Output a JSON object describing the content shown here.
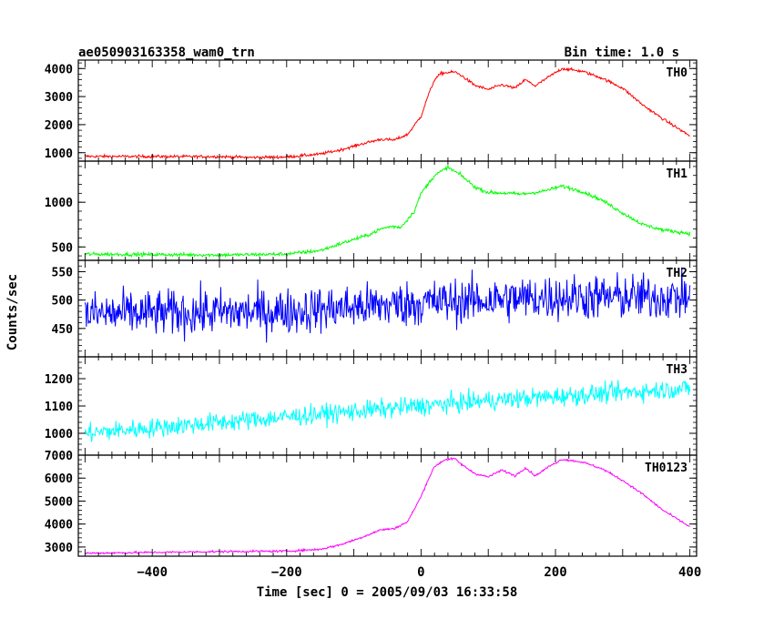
{
  "header": {
    "title": "ae050903163358_wam0_trn",
    "bin_time": "Bin time: 1.0 s"
  },
  "chart_data": {
    "type": "line",
    "xlabel": "Time [sec] 0 = 2005/09/03 16:33:58",
    "ylabel": "Counts/sec",
    "xlim": [
      -510,
      410
    ],
    "xticks": [
      -400,
      -200,
      0,
      200,
      400
    ],
    "grid": false,
    "panels": [
      {
        "name": "TH0",
        "color": "#ff0000",
        "ylim": [
          700,
          4300
        ],
        "yticks": [
          1000,
          2000,
          3000,
          4000
        ],
        "noise": 50,
        "points": [
          [
            -500,
            870
          ],
          [
            -300,
            860
          ],
          [
            -250,
            830
          ],
          [
            -200,
            850
          ],
          [
            -150,
            950
          ],
          [
            -120,
            1100
          ],
          [
            -90,
            1300
          ],
          [
            -60,
            1480
          ],
          [
            -40,
            1450
          ],
          [
            -20,
            1650
          ],
          [
            0,
            2300
          ],
          [
            10,
            3000
          ],
          [
            20,
            3600
          ],
          [
            30,
            3830
          ],
          [
            50,
            3880
          ],
          [
            60,
            3750
          ],
          [
            80,
            3400
          ],
          [
            100,
            3250
          ],
          [
            120,
            3420
          ],
          [
            140,
            3300
          ],
          [
            155,
            3600
          ],
          [
            170,
            3380
          ],
          [
            190,
            3700
          ],
          [
            210,
            4000
          ],
          [
            240,
            3900
          ],
          [
            270,
            3650
          ],
          [
            300,
            3300
          ],
          [
            330,
            2700
          ],
          [
            360,
            2200
          ],
          [
            400,
            1600
          ]
        ]
      },
      {
        "name": "TH1",
        "color": "#00ff00",
        "ylim": [
          350,
          1460
        ],
        "yticks": [
          500,
          1000
        ],
        "noise": 20,
        "points": [
          [
            -500,
            420
          ],
          [
            -300,
            410
          ],
          [
            -200,
            420
          ],
          [
            -150,
            460
          ],
          [
            -110,
            560
          ],
          [
            -80,
            630
          ],
          [
            -60,
            700
          ],
          [
            -45,
            730
          ],
          [
            -30,
            720
          ],
          [
            -10,
            900
          ],
          [
            0,
            1100
          ],
          [
            20,
            1300
          ],
          [
            40,
            1390
          ],
          [
            60,
            1300
          ],
          [
            80,
            1170
          ],
          [
            100,
            1110
          ],
          [
            130,
            1100
          ],
          [
            150,
            1090
          ],
          [
            180,
            1120
          ],
          [
            210,
            1180
          ],
          [
            240,
            1120
          ],
          [
            270,
            1020
          ],
          [
            300,
            880
          ],
          [
            330,
            750
          ],
          [
            360,
            690
          ],
          [
            400,
            650
          ]
        ]
      },
      {
        "name": "TH2",
        "color": "#0000ff",
        "ylim": [
          400,
          570
        ],
        "yticks": [
          450,
          500,
          550
        ],
        "noise": 40,
        "points": [
          [
            -500,
            475
          ],
          [
            -200,
            480
          ],
          [
            0,
            495
          ],
          [
            200,
            505
          ],
          [
            400,
            505
          ]
        ]
      },
      {
        "name": "TH3",
        "color": "#00ffff",
        "ylim": [
          920,
          1280
        ],
        "yticks": [
          1000,
          1100,
          1200
        ],
        "noise": 35,
        "points": [
          [
            -500,
            1000
          ],
          [
            -300,
            1040
          ],
          [
            -100,
            1080
          ],
          [
            100,
            1120
          ],
          [
            300,
            1150
          ],
          [
            400,
            1165
          ]
        ]
      },
      {
        "name": "TH0123",
        "color": "#ff00ff",
        "ylim": [
          2600,
          7000
        ],
        "yticks": [
          3000,
          4000,
          5000,
          6000,
          7000
        ],
        "noise": 45,
        "points": [
          [
            -500,
            2730
          ],
          [
            -300,
            2800
          ],
          [
            -200,
            2820
          ],
          [
            -150,
            2900
          ],
          [
            -120,
            3100
          ],
          [
            -90,
            3400
          ],
          [
            -60,
            3750
          ],
          [
            -40,
            3800
          ],
          [
            -20,
            4100
          ],
          [
            0,
            5200
          ],
          [
            10,
            5900
          ],
          [
            20,
            6500
          ],
          [
            35,
            6800
          ],
          [
            50,
            6850
          ],
          [
            60,
            6600
          ],
          [
            80,
            6200
          ],
          [
            100,
            6050
          ],
          [
            120,
            6350
          ],
          [
            140,
            6100
          ],
          [
            155,
            6450
          ],
          [
            170,
            6100
          ],
          [
            190,
            6500
          ],
          [
            210,
            6820
          ],
          [
            240,
            6700
          ],
          [
            270,
            6400
          ],
          [
            300,
            5900
          ],
          [
            330,
            5300
          ],
          [
            360,
            4600
          ],
          [
            400,
            3880
          ]
        ]
      }
    ]
  }
}
